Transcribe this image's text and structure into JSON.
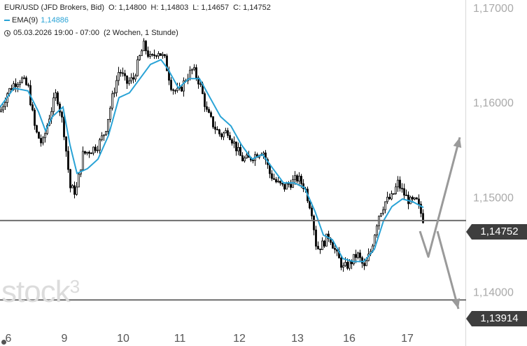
{
  "legend": {
    "symbol": "EUR/USD (JFD Brokers, Bid)",
    "o_label": "O:",
    "o_value": "1,14800",
    "h_label": "H:",
    "h_value": "1,14803",
    "l_label": "L:",
    "l_value": "1,14657",
    "c_label": "C:",
    "c_value": "1,14752",
    "ema_label": "EMA(9)",
    "ema_value": "1,14886",
    "ema_color": "#29a3d6",
    "period": "05.03.2026 19:00 - 07:00",
    "range": "(2 Wochen, 1 Stunde)"
  },
  "watermark": {
    "text": "stock",
    "sup": "3"
  },
  "price_tags": {
    "current": "1,14752",
    "support": "1,13914"
  },
  "chart_data": {
    "type": "candlestick",
    "x_labels": [
      "6",
      "9",
      "10",
      "11",
      "12",
      "13",
      "16",
      "17"
    ],
    "y_ticks": [
      "1,14000",
      "1,15000",
      "1,16000",
      "1,17000"
    ],
    "y_tick_values": [
      1.14,
      1.15,
      1.16,
      1.17
    ],
    "ylim": [
      1.1365,
      1.1705
    ],
    "horizontal_lines": [
      1.14752,
      1.13914
    ],
    "ema_color": "#29a3d6",
    "arrow_color": "#9a9a9a",
    "candle_color": "#000000",
    "anchors": [
      [
        0,
        1.159
      ],
      [
        10,
        1.161
      ],
      [
        20,
        1.162
      ],
      [
        30,
        1.1625
      ],
      [
        40,
        1.1615
      ],
      [
        50,
        1.157
      ],
      [
        60,
        1.1555
      ],
      [
        70,
        1.1585
      ],
      [
        80,
        1.161
      ],
      [
        90,
        1.1575
      ],
      [
        100,
        1.151
      ],
      [
        108,
        1.1505
      ],
      [
        118,
        1.1545
      ],
      [
        130,
        1.155
      ],
      [
        140,
        1.1555
      ],
      [
        150,
        1.157
      ],
      [
        160,
        1.1605
      ],
      [
        170,
        1.1635
      ],
      [
        180,
        1.162
      ],
      [
        190,
        1.1625
      ],
      [
        200,
        1.165
      ],
      [
        205,
        1.166
      ],
      [
        215,
        1.1645
      ],
      [
        225,
        1.1655
      ],
      [
        235,
        1.1645
      ],
      [
        245,
        1.1615
      ],
      [
        255,
        1.161
      ],
      [
        265,
        1.1625
      ],
      [
        275,
        1.1635
      ],
      [
        285,
        1.162
      ],
      [
        295,
        1.159
      ],
      [
        305,
        1.1575
      ],
      [
        315,
        1.1565
      ],
      [
        325,
        1.157
      ],
      [
        335,
        1.1555
      ],
      [
        345,
        1.154
      ],
      [
        355,
        1.154
      ],
      [
        365,
        1.1545
      ],
      [
        375,
        1.155
      ],
      [
        385,
        1.1525
      ],
      [
        395,
        1.1515
      ],
      [
        405,
        1.151
      ],
      [
        415,
        1.1515
      ],
      [
        425,
        1.152
      ],
      [
        435,
        1.151
      ],
      [
        445,
        1.1485
      ],
      [
        452,
        1.1445
      ],
      [
        460,
        1.145
      ],
      [
        470,
        1.146
      ],
      [
        480,
        1.144
      ],
      [
        490,
        1.1425
      ],
      [
        500,
        1.143
      ],
      [
        510,
        1.144
      ],
      [
        520,
        1.1425
      ],
      [
        530,
        1.1445
      ],
      [
        540,
        1.148
      ],
      [
        550,
        1.1495
      ],
      [
        560,
        1.15
      ],
      [
        568,
        1.1515
      ],
      [
        575,
        1.1505
      ],
      [
        585,
        1.1495
      ],
      [
        595,
        1.1495
      ],
      [
        605,
        1.1475
      ]
    ],
    "ema_points": [
      [
        0,
        1.1595
      ],
      [
        20,
        1.1615
      ],
      [
        40,
        1.1612
      ],
      [
        55,
        1.159
      ],
      [
        65,
        1.157
      ],
      [
        75,
        1.1585
      ],
      [
        90,
        1.1595
      ],
      [
        100,
        1.1555
      ],
      [
        110,
        1.1525
      ],
      [
        125,
        1.153
      ],
      [
        140,
        1.154
      ],
      [
        155,
        1.1565
      ],
      [
        170,
        1.1605
      ],
      [
        185,
        1.161
      ],
      [
        200,
        1.1625
      ],
      [
        215,
        1.164
      ],
      [
        230,
        1.1645
      ],
      [
        240,
        1.1635
      ],
      [
        255,
        1.1615
      ],
      [
        270,
        1.1625
      ],
      [
        285,
        1.1625
      ],
      [
        300,
        1.1605
      ],
      [
        315,
        1.1585
      ],
      [
        330,
        1.1575
      ],
      [
        345,
        1.1555
      ],
      [
        360,
        1.154
      ],
      [
        375,
        1.1545
      ],
      [
        390,
        1.153
      ],
      [
        405,
        1.1515
      ],
      [
        420,
        1.1515
      ],
      [
        435,
        1.151
      ],
      [
        450,
        1.1485
      ],
      [
        462,
        1.146
      ],
      [
        475,
        1.1455
      ],
      [
        490,
        1.1435
      ],
      [
        505,
        1.1432
      ],
      [
        520,
        1.1432
      ],
      [
        535,
        1.1445
      ],
      [
        548,
        1.1475
      ],
      [
        560,
        1.149
      ],
      [
        575,
        1.1498
      ],
      [
        590,
        1.1495
      ],
      [
        605,
        1.1489
      ]
    ],
    "arrows": [
      {
        "points": [
          [
            600,
            1.1464
          ],
          [
            612,
            1.1437
          ],
          [
            657,
            1.1563
          ]
        ]
      },
      {
        "points": [
          [
            625,
            1.1464
          ],
          [
            655,
            1.1382
          ]
        ]
      }
    ]
  }
}
